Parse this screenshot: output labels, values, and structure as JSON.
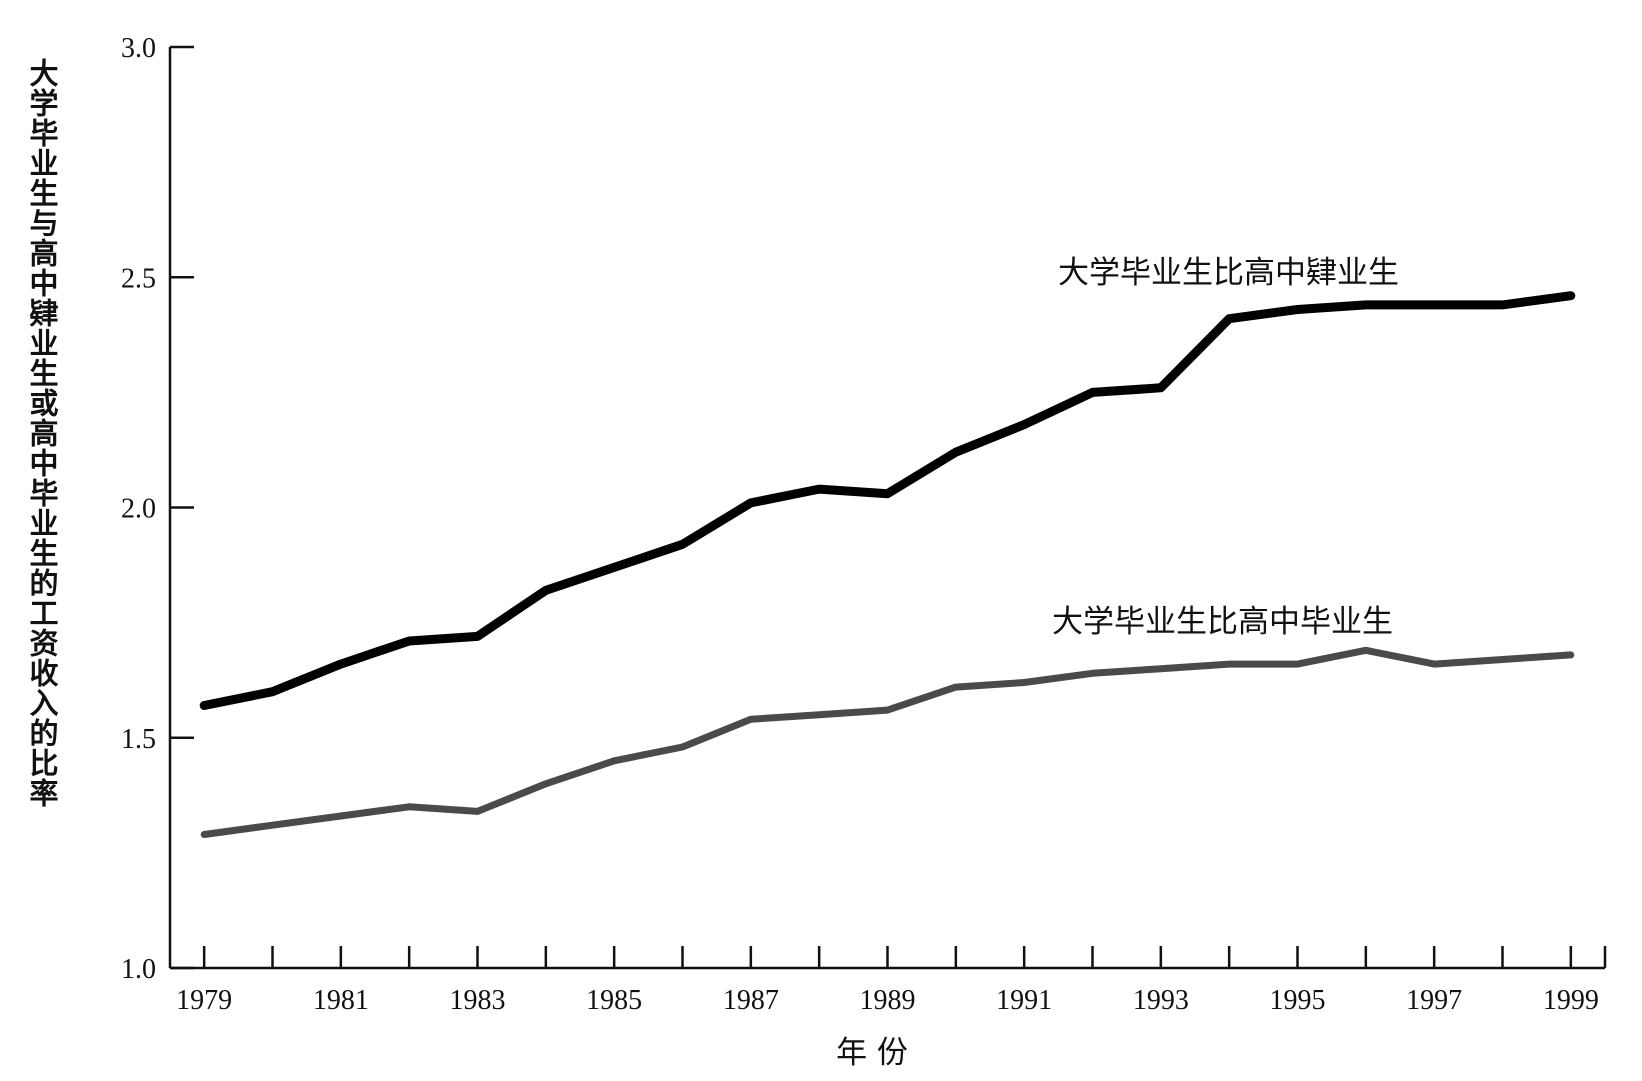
{
  "chart_data": {
    "type": "line",
    "title": "",
    "xlabel": "年 份",
    "ylabel": "大学毕业生与高中肄业生或高中毕业生的工资收入的比率",
    "ylim": [
      1.0,
      3.0
    ],
    "xlim": [
      1978.5,
      1999.5
    ],
    "y_ticks": [
      "1.0",
      "1.5",
      "2.0",
      "2.5",
      "3.0"
    ],
    "x_tick_labels": [
      "1979",
      "1981",
      "1983",
      "1985",
      "1987",
      "1989",
      "1991",
      "1993",
      "1995",
      "1997",
      "1999"
    ],
    "grid": false,
    "legend": "none",
    "series": [
      {
        "name": "大学毕业生比高中肄业生",
        "color": "#000000",
        "x": [
          1979,
          1980,
          1981,
          1982,
          1983,
          1984,
          1985,
          1986,
          1987,
          1988,
          1989,
          1990,
          1991,
          1992,
          1993,
          1994,
          1995,
          1996,
          1997,
          1998,
          1999
        ],
        "values": [
          1.57,
          1.6,
          1.66,
          1.71,
          1.72,
          1.82,
          1.87,
          1.92,
          2.01,
          2.04,
          2.03,
          2.12,
          2.18,
          2.25,
          2.26,
          2.41,
          2.43,
          2.44,
          2.44,
          2.44,
          2.46
        ]
      },
      {
        "name": "大学毕业生比高中毕业生",
        "color": "#4a4a4a",
        "x": [
          1979,
          1980,
          1981,
          1982,
          1983,
          1984,
          1985,
          1986,
          1987,
          1988,
          1989,
          1990,
          1991,
          1992,
          1993,
          1994,
          1995,
          1996,
          1997,
          1998,
          1999
        ],
        "values": [
          1.29,
          1.31,
          1.33,
          1.35,
          1.34,
          1.4,
          1.45,
          1.48,
          1.54,
          1.55,
          1.56,
          1.61,
          1.62,
          1.64,
          1.65,
          1.66,
          1.66,
          1.69,
          1.66,
          1.67,
          1.68
        ]
      }
    ]
  }
}
